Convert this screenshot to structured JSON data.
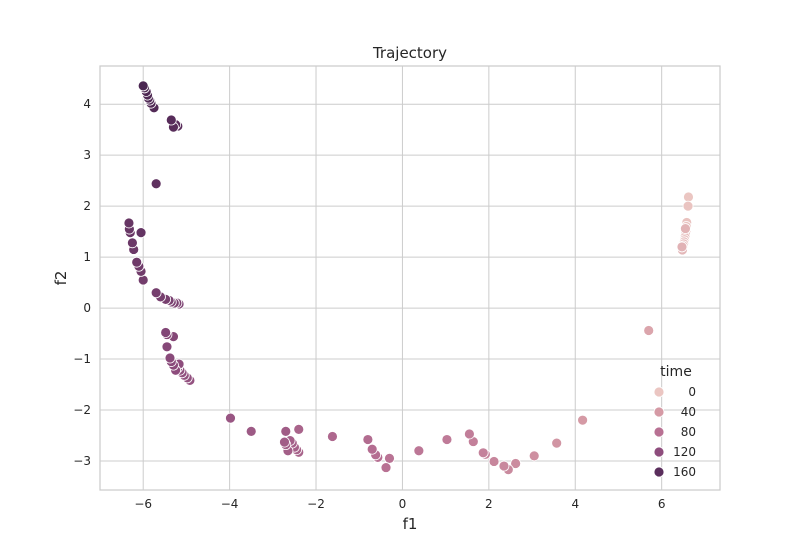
{
  "chart_data": {
    "type": "scatter",
    "title": "Trajectory",
    "xlabel": "f1",
    "ylabel": "f2",
    "xlim": [
      -7.0,
      7.35
    ],
    "ylim": [
      -3.57,
      4.75
    ],
    "xticks": [
      -6,
      -4,
      -2,
      0,
      2,
      4,
      6
    ],
    "xtick_labels": [
      "−6",
      "−4",
      "−2",
      "0",
      "2",
      "4",
      "6"
    ],
    "yticks": [
      -3,
      -2,
      -1,
      0,
      1,
      2,
      3,
      4
    ],
    "ytick_labels": [
      "−3",
      "−2",
      "−1",
      "0",
      "1",
      "2",
      "3",
      "4"
    ],
    "grid": true,
    "legend": {
      "title": "time",
      "placement": "lower-right",
      "entries": [
        {
          "label": "0",
          "color": "#ebc6c2"
        },
        {
          "label": "40",
          "color": "#d59aa5"
        },
        {
          "label": "80",
          "color": "#b87193"
        },
        {
          "label": "120",
          "color": "#8e4d7d"
        },
        {
          "label": "160",
          "color": "#5a2e5c"
        }
      ]
    },
    "color_scale": {
      "hue": "time",
      "stops": [
        {
          "t": 0,
          "color": "#ebc6c2"
        },
        {
          "t": 40,
          "color": "#d59aa5"
        },
        {
          "t": 80,
          "color": "#b87193"
        },
        {
          "t": 120,
          "color": "#8e4d7d"
        },
        {
          "t": 160,
          "color": "#5a2e5c"
        },
        {
          "t": 185,
          "color": "#3e2148"
        }
      ]
    },
    "points": [
      {
        "x": 6.62,
        "y": 2.18,
        "time": 0
      },
      {
        "x": 6.61,
        "y": 2.0,
        "time": 2
      },
      {
        "x": 6.58,
        "y": 1.68,
        "time": 4
      },
      {
        "x": 6.57,
        "y": 1.6,
        "time": 5
      },
      {
        "x": 6.56,
        "y": 1.5,
        "time": 6
      },
      {
        "x": 6.55,
        "y": 1.44,
        "time": 7
      },
      {
        "x": 6.54,
        "y": 1.39,
        "time": 8
      },
      {
        "x": 6.53,
        "y": 1.34,
        "time": 9
      },
      {
        "x": 6.52,
        "y": 1.3,
        "time": 10
      },
      {
        "x": 6.51,
        "y": 1.26,
        "time": 11
      },
      {
        "x": 6.5,
        "y": 1.22,
        "time": 12
      },
      {
        "x": 6.49,
        "y": 1.18,
        "time": 13
      },
      {
        "x": 6.48,
        "y": 1.14,
        "time": 14
      },
      {
        "x": 6.55,
        "y": 1.56,
        "time": 16
      },
      {
        "x": 6.47,
        "y": 1.2,
        "time": 18
      },
      {
        "x": 5.7,
        "y": -0.44,
        "time": 30
      },
      {
        "x": 4.17,
        "y": -2.2,
        "time": 40
      },
      {
        "x": 3.57,
        "y": -2.65,
        "time": 45
      },
      {
        "x": 3.05,
        "y": -2.9,
        "time": 50
      },
      {
        "x": 2.62,
        "y": -3.05,
        "time": 54
      },
      {
        "x": 2.45,
        "y": -3.17,
        "time": 56
      },
      {
        "x": 2.35,
        "y": -3.1,
        "time": 58
      },
      {
        "x": 2.12,
        "y": -3.01,
        "time": 60
      },
      {
        "x": 1.92,
        "y": -2.87,
        "time": 62
      },
      {
        "x": 1.87,
        "y": -2.84,
        "time": 63
      },
      {
        "x": 1.64,
        "y": -2.62,
        "time": 65
      },
      {
        "x": 1.55,
        "y": -2.47,
        "time": 67
      },
      {
        "x": 1.03,
        "y": -2.58,
        "time": 70
      },
      {
        "x": 0.38,
        "y": -2.8,
        "time": 74
      },
      {
        "x": -0.3,
        "y": -2.95,
        "time": 78
      },
      {
        "x": -0.38,
        "y": -3.13,
        "time": 80
      },
      {
        "x": -0.57,
        "y": -2.93,
        "time": 82
      },
      {
        "x": -0.62,
        "y": -2.88,
        "time": 83
      },
      {
        "x": -0.7,
        "y": -2.77,
        "time": 84
      },
      {
        "x": -0.8,
        "y": -2.58,
        "time": 86
      },
      {
        "x": -1.62,
        "y": -2.52,
        "time": 90
      },
      {
        "x": -2.4,
        "y": -2.38,
        "time": 94
      },
      {
        "x": -2.4,
        "y": -2.83,
        "time": 95
      },
      {
        "x": -2.45,
        "y": -2.78,
        "time": 96
      },
      {
        "x": -2.5,
        "y": -2.73,
        "time": 97
      },
      {
        "x": -2.55,
        "y": -2.65,
        "time": 98
      },
      {
        "x": -2.6,
        "y": -2.6,
        "time": 99
      },
      {
        "x": -2.65,
        "y": -2.8,
        "time": 100
      },
      {
        "x": -2.7,
        "y": -2.68,
        "time": 101
      },
      {
        "x": -2.73,
        "y": -2.63,
        "time": 102
      },
      {
        "x": -2.7,
        "y": -2.42,
        "time": 103
      },
      {
        "x": -3.5,
        "y": -2.42,
        "time": 106
      },
      {
        "x": -3.98,
        "y": -2.16,
        "time": 110
      },
      {
        "x": -4.92,
        "y": -1.42,
        "time": 114
      },
      {
        "x": -4.98,
        "y": -1.37,
        "time": 115
      },
      {
        "x": -5.05,
        "y": -1.32,
        "time": 116
      },
      {
        "x": -5.1,
        "y": -1.27,
        "time": 117
      },
      {
        "x": -5.15,
        "y": -1.22,
        "time": 118
      },
      {
        "x": -5.2,
        "y": -1.17,
        "time": 119
      },
      {
        "x": -5.17,
        "y": -1.1,
        "time": 120
      },
      {
        "x": -5.25,
        "y": -1.22,
        "time": 121
      },
      {
        "x": -5.3,
        "y": -1.12,
        "time": 122
      },
      {
        "x": -5.35,
        "y": -1.05,
        "time": 123
      },
      {
        "x": -5.38,
        "y": -0.98,
        "time": 124
      },
      {
        "x": -5.45,
        "y": -0.76,
        "time": 126
      },
      {
        "x": -5.3,
        "y": -0.56,
        "time": 127
      },
      {
        "x": -5.45,
        "y": -0.52,
        "time": 128
      },
      {
        "x": -5.48,
        "y": -0.48,
        "time": 129
      },
      {
        "x": -5.17,
        "y": 0.08,
        "time": 132
      },
      {
        "x": -5.22,
        "y": 0.1,
        "time": 133
      },
      {
        "x": -5.28,
        "y": 0.1,
        "time": 134
      },
      {
        "x": -5.35,
        "y": 0.12,
        "time": 135
      },
      {
        "x": -5.4,
        "y": 0.15,
        "time": 136
      },
      {
        "x": -5.48,
        "y": 0.17,
        "time": 137
      },
      {
        "x": -5.6,
        "y": 0.22,
        "time": 138
      },
      {
        "x": -5.7,
        "y": 0.3,
        "time": 139
      },
      {
        "x": -6.0,
        "y": 0.55,
        "time": 141
      },
      {
        "x": -6.05,
        "y": 0.72,
        "time": 142
      },
      {
        "x": -6.1,
        "y": 0.82,
        "time": 143
      },
      {
        "x": -6.15,
        "y": 0.9,
        "time": 144
      },
      {
        "x": -6.22,
        "y": 1.15,
        "time": 146
      },
      {
        "x": -6.25,
        "y": 1.28,
        "time": 147
      },
      {
        "x": -6.3,
        "y": 1.48,
        "time": 148
      },
      {
        "x": -6.32,
        "y": 1.55,
        "time": 149
      },
      {
        "x": -6.33,
        "y": 1.67,
        "time": 150
      },
      {
        "x": -6.05,
        "y": 1.48,
        "time": 152
      },
      {
        "x": -5.7,
        "y": 2.44,
        "time": 156
      },
      {
        "x": -5.2,
        "y": 3.57,
        "time": 160
      },
      {
        "x": -5.25,
        "y": 3.6,
        "time": 161
      },
      {
        "x": -5.3,
        "y": 3.55,
        "time": 162
      },
      {
        "x": -5.35,
        "y": 3.69,
        "time": 163
      },
      {
        "x": -5.75,
        "y": 3.93,
        "time": 166
      },
      {
        "x": -5.82,
        "y": 4.02,
        "time": 167
      },
      {
        "x": -5.85,
        "y": 4.08,
        "time": 168
      },
      {
        "x": -5.88,
        "y": 4.12,
        "time": 169
      },
      {
        "x": -5.9,
        "y": 4.18,
        "time": 170
      },
      {
        "x": -5.93,
        "y": 4.25,
        "time": 171
      },
      {
        "x": -5.97,
        "y": 4.32,
        "time": 172
      },
      {
        "x": -6.0,
        "y": 4.36,
        "time": 173
      }
    ]
  }
}
